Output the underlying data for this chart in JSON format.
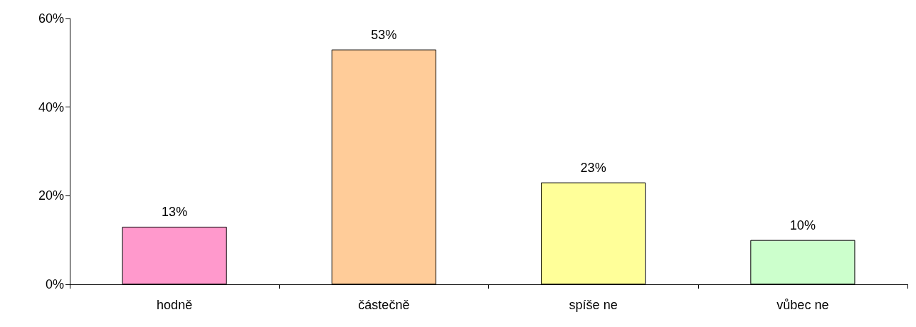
{
  "chart_data": {
    "type": "bar",
    "categories": [
      "hodně",
      "částečně",
      "spíše ne",
      "vůbec ne"
    ],
    "values": [
      13,
      53,
      23,
      10
    ],
    "colors": [
      "#ff99cc",
      "#ffcc99",
      "#ffff99",
      "#ccffcc"
    ],
    "value_labels": [
      "13%",
      "53%",
      "23%",
      "10%"
    ],
    "ylim": [
      0,
      60
    ],
    "yticks": [
      {
        "value": 0,
        "label": "0%"
      },
      {
        "value": 20,
        "label": "20%"
      },
      {
        "value": 40,
        "label": "40%"
      },
      {
        "value": 60,
        "label": "60%"
      }
    ],
    "grid": false
  }
}
